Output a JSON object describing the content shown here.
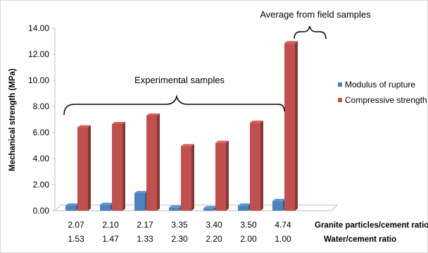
{
  "chart_data": {
    "type": "bar",
    "ylabel": "Mechanical strength (MPa)",
    "ylim": [
      0,
      14
    ],
    "ytick_labels": [
      "0.00",
      "2.00",
      "4.00",
      "6.00",
      "8.00",
      "10.00",
      "12.00",
      "14.00"
    ],
    "categories": [
      "2.07",
      "2.10",
      "2.17",
      "3.35",
      "3.40",
      "3.50",
      "4.74"
    ],
    "categories_row2": [
      "1.53",
      "1.47",
      "1.33",
      "2.30",
      "2.20",
      "2.00",
      "1.00"
    ],
    "row1_label": "Granite particles/cement ratio",
    "row2_label": "Water/cement ratio",
    "series": [
      {
        "name": "Modulus of rupture",
        "color": "#4f81bd",
        "values": [
          0.4,
          0.45,
          1.35,
          0.25,
          0.2,
          0.4,
          0.75
        ]
      },
      {
        "name": "Compressive strength",
        "color": "#c0504d",
        "values": [
          6.4,
          6.65,
          7.3,
          4.95,
          5.2,
          6.75,
          12.85
        ]
      }
    ],
    "annotations": {
      "experimental": "Experimental samples",
      "field": "Average from field samples"
    },
    "grid": false,
    "legend_position": "right"
  }
}
